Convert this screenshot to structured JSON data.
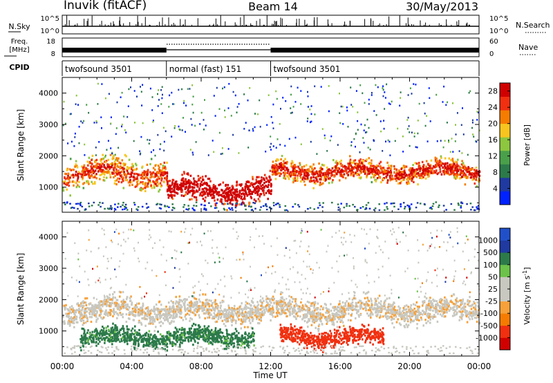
{
  "header": {
    "station": "Inuvik (fitACF)",
    "beam": "Beam 14",
    "date": "30/May/2013"
  },
  "aux_panels": {
    "nsky_label": "N.Sky",
    "nsky_ticks": [
      "10^5",
      "10^0"
    ],
    "nsearch_label": "N.Search",
    "freq_label_1": "Freq.",
    "freq_label_2": "[MHz]",
    "freq_ticks": [
      "18",
      "8"
    ],
    "nave_label": "Nave",
    "nave_ticks": [
      "60",
      "0"
    ],
    "cpid_label": "CPID",
    "cpid_segments": [
      {
        "label": "twofsound 3501",
        "start_h": 0,
        "end_h": 6
      },
      {
        "label": "normal (fast) 151",
        "start_h": 6,
        "end_h": 12
      },
      {
        "label": "twofsound 3501",
        "start_h": 12,
        "end_h": 24
      }
    ]
  },
  "colors": {
    "power": [
      "#0022ff",
      "#1f3aa0",
      "#2c7a4a",
      "#4aa04a",
      "#8dc63f",
      "#f7c51e",
      "#f57c00",
      "#f03010",
      "#d00000"
    ],
    "velocity": [
      "#d00000",
      "#f03010",
      "#f57c00",
      "#f6a13a",
      "#c8c8c0",
      "#c8c8c0",
      "#6cc24a",
      "#2c7a4a",
      "#1f3aa0",
      "#2050c8"
    ]
  },
  "chart_data": [
    {
      "type": "heatmap",
      "title": "",
      "xlabel": "",
      "ylabel": "Slant Range [km]",
      "x_ticks": [
        "00:00",
        "04:00",
        "08:00",
        "12:00",
        "16:00",
        "20:00",
        "00:00"
      ],
      "xlim": [
        0,
        24
      ],
      "y_ticks": [
        "1000",
        "2000",
        "3000",
        "4000"
      ],
      "ylim": [
        200,
        4500
      ],
      "colorbar": {
        "label": "Power [dB]",
        "ticks": [
          "4",
          "8",
          "12",
          "16",
          "20",
          "24",
          "28"
        ],
        "range": [
          0,
          30
        ]
      },
      "echo_bands": [
        {
          "start_h": 0,
          "end_h": 6,
          "center_km": 1450,
          "width_km": 700,
          "mean_value": 18
        },
        {
          "start_h": 6,
          "end_h": 12,
          "center_km": 900,
          "width_km": 600,
          "mean_value": 26
        },
        {
          "start_h": 12,
          "end_h": 24,
          "center_km": 1500,
          "width_km": 500,
          "mean_value": 20
        }
      ]
    },
    {
      "type": "heatmap",
      "title": "",
      "xlabel": "Time UT",
      "ylabel": "Slant Range [km]",
      "x_ticks": [
        "00:00",
        "04:00",
        "08:00",
        "12:00",
        "16:00",
        "20:00",
        "00:00"
      ],
      "xlim": [
        0,
        24
      ],
      "y_ticks": [
        "1000",
        "2000",
        "3000",
        "4000"
      ],
      "ylim": [
        200,
        4500
      ],
      "colorbar": {
        "label": "Velocity [m s",
        "label_sup": "-1",
        "label_end": "]",
        "ticks": [
          "1000",
          "500",
          "100",
          "50",
          "25",
          "-25",
          "-100",
          "-500",
          "-1000"
        ],
        "range": [
          -1000,
          1000
        ]
      },
      "echo_bands": [
        {
          "start_h": 0,
          "end_h": 24,
          "center_km": 1650,
          "width_km": 600,
          "mean_value": 0
        },
        {
          "start_h": 1,
          "end_h": 11,
          "center_km": 800,
          "width_km": 450,
          "mean_value": 150
        },
        {
          "start_h": 12.5,
          "end_h": 18.5,
          "center_km": 800,
          "width_km": 450,
          "mean_value": -200
        }
      ]
    }
  ]
}
